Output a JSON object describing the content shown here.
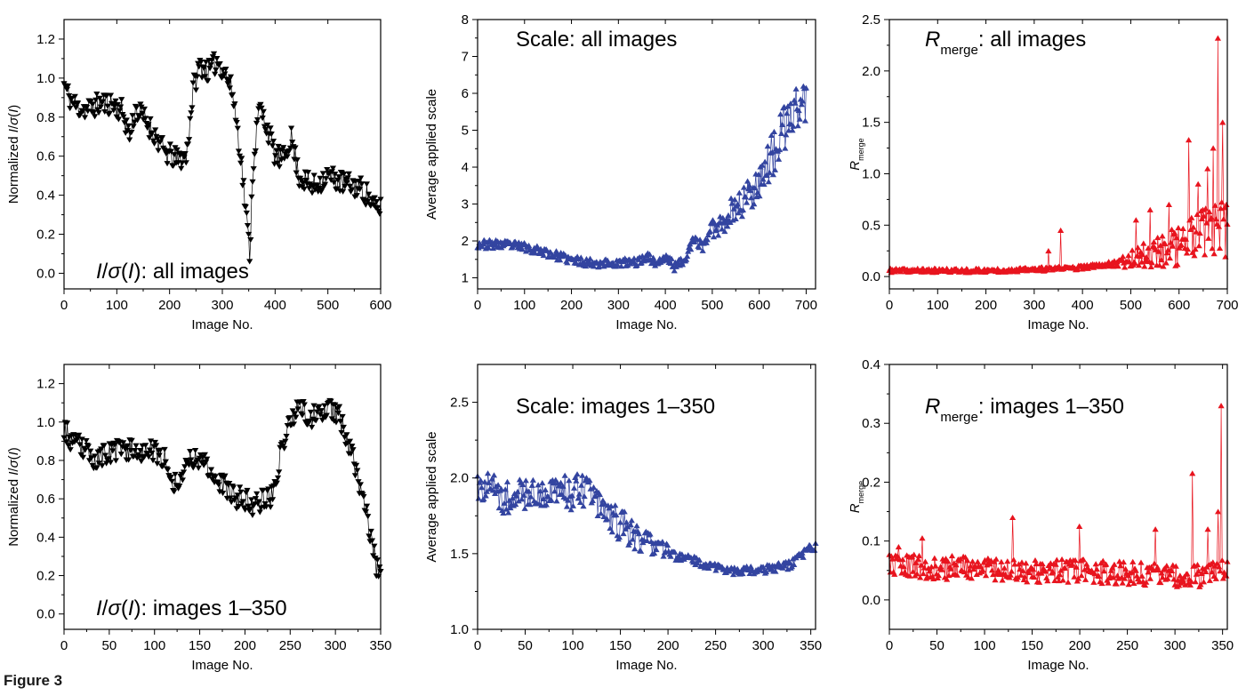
{
  "caption": "Figure 3",
  "colors": {
    "black": "#000000",
    "blue": "#3344a0",
    "red": "#e8141e"
  },
  "chart_data": [
    {
      "id": "p1",
      "type": "line",
      "marker": "triangle-down",
      "color": "#000000",
      "title": "I/σ(I): all images",
      "title_parts": [
        {
          "t": "I",
          "it": true
        },
        {
          "t": "/"
        },
        {
          "t": "σ",
          "it": true
        },
        {
          "t": "("
        },
        {
          "t": "I",
          "it": true
        },
        {
          "t": "): all images"
        }
      ],
      "xlabel": "Image No.",
      "ylabel_parts": [
        {
          "t": "Normalized "
        },
        {
          "t": "I",
          "it": true
        },
        {
          "t": "/"
        },
        {
          "t": "σ",
          "it": true
        },
        {
          "t": "("
        },
        {
          "t": "I",
          "it": true
        },
        {
          "t": ")"
        }
      ],
      "xlim": [
        0,
        600
      ],
      "ylim": [
        -0.08,
        1.3
      ],
      "xticks": [
        "0",
        "100",
        "200",
        "300",
        "400",
        "500",
        "600"
      ],
      "xtick_values": [
        0,
        100,
        200,
        300,
        400,
        500,
        600
      ],
      "yticks": [
        "0.0",
        "0.2",
        "0.4",
        "0.6",
        "0.8",
        "1.0",
        "1.2"
      ],
      "ytick_values": [
        0,
        0.2,
        0.4,
        0.6,
        0.8,
        1.0,
        1.2
      ],
      "trend": [
        [
          0,
          0.97
        ],
        [
          10,
          0.9
        ],
        [
          25,
          0.85
        ],
        [
          45,
          0.84
        ],
        [
          70,
          0.87
        ],
        [
          90,
          0.87
        ],
        [
          110,
          0.83
        ],
        [
          125,
          0.7
        ],
        [
          135,
          0.84
        ],
        [
          150,
          0.8
        ],
        [
          170,
          0.72
        ],
        [
          190,
          0.62
        ],
        [
          215,
          0.58
        ],
        [
          232,
          0.6
        ],
        [
          245,
          0.95
        ],
        [
          258,
          1.07
        ],
        [
          275,
          1.03
        ],
        [
          290,
          1.09
        ],
        [
          305,
          1.03
        ],
        [
          320,
          0.92
        ],
        [
          335,
          0.6
        ],
        [
          345,
          0.3
        ],
        [
          352,
          0.1
        ],
        [
          358,
          0.55
        ],
        [
          370,
          0.85
        ],
        [
          385,
          0.75
        ],
        [
          400,
          0.6
        ],
        [
          415,
          0.58
        ],
        [
          430,
          0.7
        ],
        [
          445,
          0.5
        ],
        [
          470,
          0.44
        ],
        [
          500,
          0.5
        ],
        [
          530,
          0.46
        ],
        [
          560,
          0.44
        ],
        [
          575,
          0.4
        ],
        [
          588,
          0.33
        ]
      ],
      "noise": 0.06,
      "noise_x": [
        0,
        600
      ],
      "n_points": 320,
      "seed": 11
    },
    {
      "id": "p2",
      "type": "line",
      "marker": "triangle-up",
      "color": "#3344a0",
      "title": "Scale: all images",
      "title_parts": [
        {
          "t": "Scale: all images"
        }
      ],
      "xlabel": "Image No.",
      "ylabel_parts": [
        {
          "t": "Average applied scale"
        }
      ],
      "xlim": [
        0,
        720
      ],
      "ylim": [
        0.7,
        8.0
      ],
      "xticks": [
        "0",
        "100",
        "200",
        "300",
        "400",
        "500",
        "600",
        "700"
      ],
      "xtick_values": [
        0,
        100,
        200,
        300,
        400,
        500,
        600,
        700
      ],
      "yticks": [
        "1",
        "2",
        "3",
        "4",
        "5",
        "6",
        "7",
        "8"
      ],
      "ytick_values": [
        1,
        2,
        3,
        4,
        5,
        6,
        7,
        8
      ],
      "trend": [
        [
          0,
          1.92
        ],
        [
          60,
          1.9
        ],
        [
          100,
          1.85
        ],
        [
          150,
          1.68
        ],
        [
          200,
          1.48
        ],
        [
          250,
          1.41
        ],
        [
          300,
          1.4
        ],
        [
          345,
          1.45
        ],
        [
          360,
          1.6
        ],
        [
          380,
          1.4
        ],
        [
          405,
          1.55
        ],
        [
          420,
          1.3
        ],
        [
          440,
          1.5
        ],
        [
          460,
          2.0
        ],
        [
          480,
          1.9
        ],
        [
          500,
          2.35
        ],
        [
          520,
          2.5
        ],
        [
          540,
          2.8
        ],
        [
          560,
          3.0
        ],
        [
          580,
          3.3
        ],
        [
          600,
          3.7
        ],
        [
          620,
          4.1
        ],
        [
          640,
          4.6
        ],
        [
          660,
          5.2
        ],
        [
          680,
          5.6
        ],
        [
          700,
          5.8
        ]
      ],
      "noise": 0.12,
      "noise_x": [
        0,
        700
      ],
      "noise_growth": 0.18,
      "noise_growth_start": 450,
      "n_points": 360,
      "seed": 23
    },
    {
      "id": "p3",
      "type": "line",
      "marker": "triangle-up",
      "color": "#e8141e",
      "title": "Rmerge: all images",
      "title_parts": [
        {
          "t": "R",
          "it": true
        },
        {
          "t": "merge",
          "sub": true
        },
        {
          "t": ": all images"
        }
      ],
      "xlabel": "Image No.",
      "ylabel_parts": [
        {
          "t": "R",
          "it": true
        },
        {
          "t": "merge",
          "sub": true
        }
      ],
      "xlim": [
        0,
        700
      ],
      "ylim": [
        -0.12,
        2.5
      ],
      "xticks": [
        "0",
        "100",
        "200",
        "300",
        "400",
        "500",
        "600",
        "700"
      ],
      "xtick_values": [
        0,
        100,
        200,
        300,
        400,
        500,
        600,
        700
      ],
      "yticks": [
        "0.0",
        "0.5",
        "1.0",
        "1.5",
        "2.0",
        "2.5"
      ],
      "ytick_values": [
        0,
        0.5,
        1.0,
        1.5,
        2.0,
        2.5
      ],
      "trend": [
        [
          0,
          0.06
        ],
        [
          100,
          0.06
        ],
        [
          200,
          0.06
        ],
        [
          300,
          0.07
        ],
        [
          350,
          0.08
        ],
        [
          400,
          0.09
        ],
        [
          450,
          0.12
        ],
        [
          500,
          0.17
        ],
        [
          550,
          0.24
        ],
        [
          600,
          0.32
        ],
        [
          650,
          0.4
        ],
        [
          700,
          0.45
        ]
      ],
      "noise": 0.02,
      "noise_x": [
        0,
        700
      ],
      "noise_growth": 0.08,
      "noise_growth_start": 450,
      "spikes": [
        [
          330,
          0.25
        ],
        [
          355,
          0.45
        ],
        [
          510,
          0.55
        ],
        [
          540,
          0.65
        ],
        [
          580,
          0.7
        ],
        [
          620,
          1.33
        ],
        [
          640,
          0.9
        ],
        [
          660,
          1.05
        ],
        [
          670,
          1.25
        ],
        [
          680,
          2.32
        ],
        [
          690,
          1.5
        ],
        [
          698,
          0.7
        ]
      ],
      "n_points": 360,
      "seed": 37
    },
    {
      "id": "p4",
      "type": "line",
      "marker": "triangle-down",
      "color": "#000000",
      "title": "I/σ(I): images 1–350",
      "title_parts": [
        {
          "t": "I",
          "it": true
        },
        {
          "t": "/"
        },
        {
          "t": "σ",
          "it": true
        },
        {
          "t": "("
        },
        {
          "t": "I",
          "it": true
        },
        {
          "t": "): images 1–350"
        }
      ],
      "xlabel": "Image No.",
      "ylabel_parts": [
        {
          "t": "Normalized "
        },
        {
          "t": "I",
          "it": true
        },
        {
          "t": "/"
        },
        {
          "t": "σ",
          "it": true
        },
        {
          "t": "("
        },
        {
          "t": "I",
          "it": true
        },
        {
          "t": ")"
        }
      ],
      "xlim": [
        0,
        350
      ],
      "ylim": [
        -0.08,
        1.3
      ],
      "xticks": [
        "0",
        "50",
        "100",
        "150",
        "200",
        "250",
        "300",
        "350"
      ],
      "xtick_values": [
        0,
        50,
        100,
        150,
        200,
        250,
        300,
        350
      ],
      "yticks": [
        "0.0",
        "0.2",
        "0.4",
        "0.6",
        "0.8",
        "1.0",
        "1.2"
      ],
      "ytick_values": [
        0,
        0.2,
        0.4,
        0.6,
        0.8,
        1.0,
        1.2
      ],
      "trend": [
        [
          0,
          0.97
        ],
        [
          10,
          0.88
        ],
        [
          20,
          0.87
        ],
        [
          35,
          0.8
        ],
        [
          50,
          0.84
        ],
        [
          70,
          0.86
        ],
        [
          90,
          0.85
        ],
        [
          110,
          0.82
        ],
        [
          125,
          0.65
        ],
        [
          135,
          0.8
        ],
        [
          150,
          0.82
        ],
        [
          165,
          0.73
        ],
        [
          185,
          0.62
        ],
        [
          210,
          0.57
        ],
        [
          230,
          0.62
        ],
        [
          245,
          0.95
        ],
        [
          258,
          1.08
        ],
        [
          272,
          1.02
        ],
        [
          290,
          1.08
        ],
        [
          305,
          1.02
        ],
        [
          320,
          0.82
        ],
        [
          335,
          0.5
        ],
        [
          345,
          0.25
        ],
        [
          350,
          0.17
        ]
      ],
      "noise": 0.06,
      "noise_x": [
        0,
        350
      ],
      "n_points": 300,
      "seed": 53
    },
    {
      "id": "p5",
      "type": "line",
      "marker": "triangle-up",
      "color": "#3344a0",
      "title": "Scale: images 1–350",
      "title_parts": [
        {
          "t": "Scale: images 1–350"
        }
      ],
      "xlabel": "Image No.",
      "ylabel_parts": [
        {
          "t": "Average applied scale"
        }
      ],
      "xlim": [
        0,
        355
      ],
      "ylim": [
        1.0,
        2.75
      ],
      "xticks": [
        "0",
        "50",
        "100",
        "150",
        "200",
        "250",
        "300",
        "350"
      ],
      "xtick_values": [
        0,
        50,
        100,
        150,
        200,
        250,
        300,
        350
      ],
      "yticks": [
        "1.0",
        "1.5",
        "2.0",
        "2.5"
      ],
      "ytick_values": [
        1.0,
        1.5,
        2.0,
        2.5
      ],
      "trend": [
        [
          0,
          1.95
        ],
        [
          30,
          1.88
        ],
        [
          60,
          1.9
        ],
        [
          90,
          1.9
        ],
        [
          110,
          1.92
        ],
        [
          130,
          1.82
        ],
        [
          150,
          1.7
        ],
        [
          170,
          1.6
        ],
        [
          190,
          1.55
        ],
        [
          210,
          1.48
        ],
        [
          230,
          1.45
        ],
        [
          250,
          1.41
        ],
        [
          270,
          1.39
        ],
        [
          290,
          1.39
        ],
        [
          310,
          1.4
        ],
        [
          330,
          1.43
        ],
        [
          350,
          1.55
        ]
      ],
      "noise": 0.12,
      "noise_x": [
        0,
        355
      ],
      "noise_shrink": 0.03,
      "noise_shrink_start": 150,
      "n_points": 330,
      "seed": 71
    },
    {
      "id": "p6",
      "type": "line",
      "marker": "triangle-up",
      "color": "#e8141e",
      "title": "Rmerge: images 1–350",
      "title_parts": [
        {
          "t": "R",
          "it": true
        },
        {
          "t": "merge",
          "sub": true
        },
        {
          "t": ": images 1–350"
        }
      ],
      "xlabel": "Image No.",
      "ylabel_parts": [
        {
          "t": "R",
          "it": true
        },
        {
          "t": "merge",
          "sub": true
        }
      ],
      "xlim": [
        0,
        355
      ],
      "ylim": [
        -0.05,
        0.4
      ],
      "xticks": [
        "0",
        "50",
        "100",
        "150",
        "200",
        "250",
        "300",
        "350"
      ],
      "xtick_values": [
        0,
        50,
        100,
        150,
        200,
        250,
        300,
        350
      ],
      "yticks": [
        "0.0",
        "0.1",
        "0.2",
        "0.3",
        "0.4"
      ],
      "ytick_values": [
        0,
        0.1,
        0.2,
        0.3,
        0.4
      ],
      "trend": [
        [
          0,
          0.06
        ],
        [
          50,
          0.055
        ],
        [
          100,
          0.055
        ],
        [
          150,
          0.05
        ],
        [
          200,
          0.05
        ],
        [
          250,
          0.045
        ],
        [
          280,
          0.045
        ],
        [
          300,
          0.04
        ],
        [
          320,
          0.04
        ],
        [
          350,
          0.05
        ]
      ],
      "noise": 0.02,
      "noise_x": [
        0,
        355
      ],
      "spikes": [
        [
          10,
          0.09
        ],
        [
          35,
          0.105
        ],
        [
          130,
          0.14
        ],
        [
          200,
          0.125
        ],
        [
          280,
          0.12
        ],
        [
          318,
          0.215
        ],
        [
          335,
          0.12
        ],
        [
          345,
          0.15
        ],
        [
          348,
          0.33
        ]
      ],
      "n_points": 330,
      "seed": 89
    }
  ]
}
